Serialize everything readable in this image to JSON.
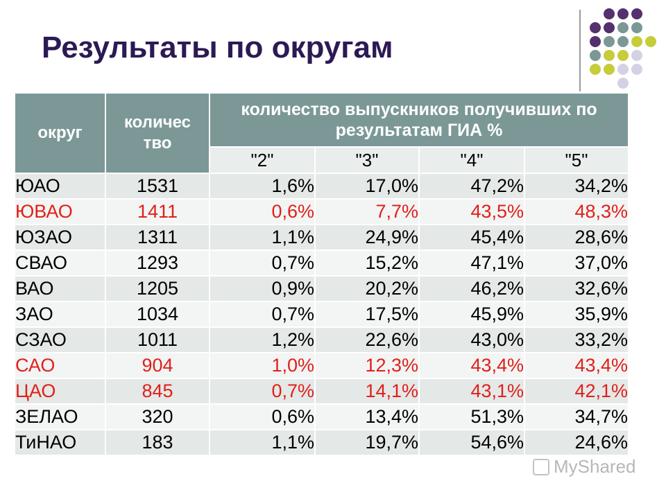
{
  "title": "Результаты по округам",
  "colors": {
    "title": "#2c1a54",
    "header_bg": "#7b9897",
    "highlight_text": "#e0201a",
    "dot_purple": "#54306e",
    "dot_teal": "#7b9897",
    "dot_lime": "#c6cc3a",
    "dot_lavender": "#d3d2e4"
  },
  "table": {
    "headers": {
      "district": "округ",
      "count": "количес тво",
      "share": "количество выпускников получивших по результатам ГИА %"
    },
    "grade_headers": [
      "\"2\"",
      "\"3\"",
      "\"4\"",
      "\"5\""
    ],
    "rows": [
      {
        "district": "ЮАО",
        "count": "1531",
        "g2": "1,6%",
        "g3": "17,0%",
        "g4": "47,2%",
        "g5": "34,2%",
        "highlight": false
      },
      {
        "district": "ЮВАО",
        "count": "1411",
        "g2": "0,6%",
        "g3": "7,7%",
        "g4": "43,5%",
        "g5": "48,3%",
        "highlight": true
      },
      {
        "district": "ЮЗАО",
        "count": "1311",
        "g2": "1,1%",
        "g3": "24,9%",
        "g4": "45,4%",
        "g5": "28,6%",
        "highlight": false
      },
      {
        "district": "СВАО",
        "count": "1293",
        "g2": "0,7%",
        "g3": "15,2%",
        "g4": "47,1%",
        "g5": "37,0%",
        "highlight": false
      },
      {
        "district": "ВАО",
        "count": "1205",
        "g2": "0,9%",
        "g3": "20,2%",
        "g4": "46,2%",
        "g5": "32,6%",
        "highlight": false
      },
      {
        "district": "ЗАО",
        "count": "1034",
        "g2": "0,7%",
        "g3": "17,5%",
        "g4": "45,9%",
        "g5": "35,9%",
        "highlight": false
      },
      {
        "district": "СЗАО",
        "count": "1011",
        "g2": "1,2%",
        "g3": "22,6%",
        "g4": "43,0%",
        "g5": "33,2%",
        "highlight": false
      },
      {
        "district": "САО",
        "count": "904",
        "g2": "1,0%",
        "g3": "12,3%",
        "g4": "43,4%",
        "g5": "43,4%",
        "highlight": true
      },
      {
        "district": "ЦАО",
        "count": "845",
        "g2": "0,7%",
        "g3": "14,1%",
        "g4": "43,1%",
        "g5": "42,1%",
        "highlight": true
      },
      {
        "district": "ЗЕЛАО",
        "count": "320",
        "g2": "0,6%",
        "g3": "13,4%",
        "g4": "51,3%",
        "g5": "34,7%",
        "highlight": false
      },
      {
        "district": "ТиНАО",
        "count": "183",
        "g2": "1,1%",
        "g3": "19,7%",
        "g4": "54,6%",
        "g5": "24,6%",
        "highlight": false
      }
    ]
  },
  "watermark": {
    "text": "MyShared",
    "icon": "projector-screen-icon"
  }
}
